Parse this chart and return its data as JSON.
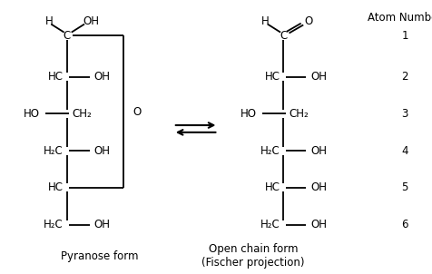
{
  "bg_color": "#ffffff",
  "text_color": "#000000",
  "fig_width": 4.77,
  "fig_height": 3.02,
  "dpi": 100,
  "pyranose_label": "Pyranose form",
  "open_chain_label": "Open chain form\n(Fischer projection)",
  "atom_number_label": "Atom Number",
  "atom_numbers": [
    "1",
    "2",
    "3",
    "4",
    "5",
    "6"
  ]
}
